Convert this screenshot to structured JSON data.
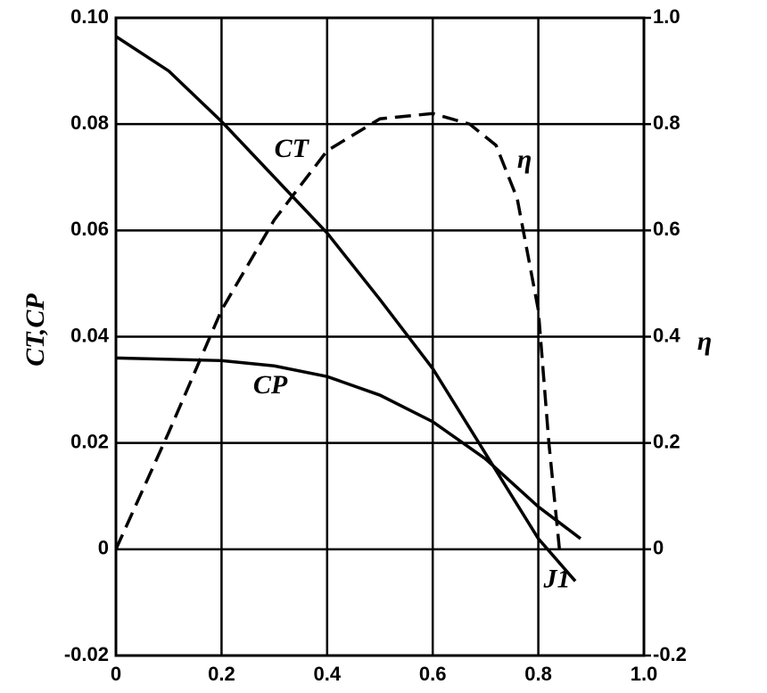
{
  "chart_data": {
    "type": "line",
    "y_label": "CT,CP",
    "y2_label": "η",
    "xlim": [
      0,
      1
    ],
    "xticks": [
      0,
      0.2,
      0.4,
      0.6,
      0.8,
      {
        "value": 1,
        "label": "1.0"
      }
    ],
    "ylim": [
      -0.02,
      0.1
    ],
    "yticks": [
      -0.02,
      0,
      0.02,
      0.04,
      0.06,
      0.08,
      {
        "value": 0.1,
        "label": "0.10"
      }
    ],
    "y2lim": [
      -0.2,
      1
    ],
    "y2ticks": [
      -0.2,
      0,
      0.2,
      0.4,
      0.6,
      0.8,
      {
        "value": 1,
        "label": "1.0"
      }
    ],
    "grid": true,
    "series": [
      {
        "name": "CT",
        "color": "#000",
        "dashed": false,
        "x": [
          0,
          0.1,
          0.2,
          0.3,
          0.4,
          0.5,
          0.6,
          0.7,
          0.8,
          0.87
        ],
        "values": [
          0.0965,
          0.09,
          0.0805,
          0.07,
          0.0595,
          0.047,
          0.034,
          0.018,
          0.002,
          -0.006
        ]
      },
      {
        "name": "CP",
        "color": "#000",
        "dashed": false,
        "x": [
          0,
          0.2,
          0.3,
          0.4,
          0.5,
          0.6,
          0.7,
          0.8,
          0.88
        ],
        "values": [
          0.036,
          0.0355,
          0.0345,
          0.0325,
          0.029,
          0.024,
          0.017,
          0.008,
          0.002
        ]
      },
      {
        "name": "η",
        "color": "#000",
        "dashed": true,
        "axis": "y2",
        "x": [
          0,
          0.1,
          0.2,
          0.3,
          0.4,
          0.5,
          0.6,
          0.67,
          0.72,
          0.76,
          0.8,
          0.82,
          0.84
        ],
        "values": [
          0,
          0.22,
          0.45,
          0.62,
          0.75,
          0.81,
          0.82,
          0.8,
          0.76,
          0.66,
          0.45,
          0.2,
          0
        ]
      }
    ],
    "annotations": [
      {
        "text": "CT",
        "x": 0.3,
        "y": 0.075
      },
      {
        "text": "CP",
        "x": 0.26,
        "y": 0.0305
      },
      {
        "text": "η",
        "x": 0.76,
        "y": 0.073
      },
      {
        "text": "J1",
        "x": 0.81,
        "y": -0.006
      }
    ]
  }
}
